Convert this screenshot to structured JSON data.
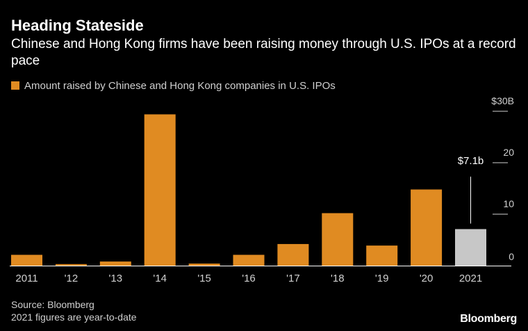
{
  "colors": {
    "background": "#000000",
    "bar": "#e08b22",
    "highlight": "#c7c7c7",
    "text": "#ffffff",
    "muted": "#d0d0d0"
  },
  "chart_data": {
    "type": "bar",
    "title": "Heading Stateside",
    "subtitle": "Chinese and Hong Kong firms have been raising money through U.S. IPOs at a record pace",
    "legend": "Amount raised by Chinese and Hong Kong companies in U.S. IPOs",
    "categories": [
      "2011",
      "'12",
      "'13",
      "'14",
      "'15",
      "'16",
      "'17",
      "'18",
      "'19",
      "'20",
      "2021"
    ],
    "values": [
      2.1,
      0.3,
      0.8,
      29.4,
      0.4,
      2.1,
      4.2,
      10.2,
      3.9,
      14.8,
      7.1
    ],
    "highlight_index": 10,
    "annotation": "$7.1b",
    "y_ticks": [
      0,
      10,
      20,
      30
    ],
    "y_tick_labels": [
      "0",
      "10",
      "20",
      "$30B"
    ],
    "ylim": [
      0,
      30
    ],
    "y_axis_position": "right"
  },
  "footer": {
    "source": "Source: Bloomberg",
    "note": "2021 figures are year-to-date",
    "brand": "Bloomberg"
  }
}
